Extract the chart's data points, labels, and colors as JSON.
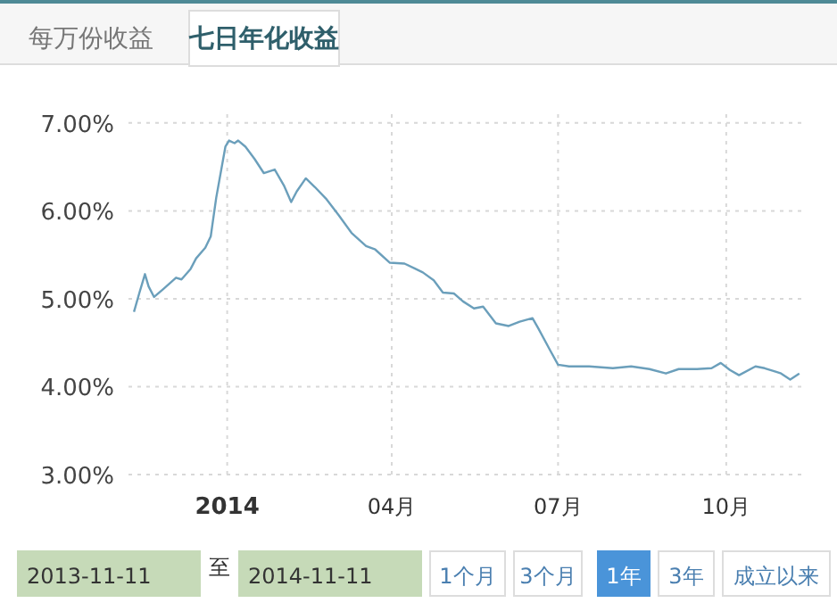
{
  "chart_data": {
    "type": "line",
    "series": [
      {
        "color": "#6b9fbb",
        "x": [
          "2013-11-11",
          "2013-11-14",
          "2013-11-17",
          "2013-11-19",
          "2013-11-22",
          "2013-11-27",
          "2013-12-04",
          "2013-12-07",
          "2013-12-12",
          "2013-12-15",
          "2013-12-20",
          "2013-12-23",
          "2013-12-26",
          "2013-12-31",
          "2014-01-02",
          "2014-01-05",
          "2014-01-07",
          "2014-01-11",
          "2014-01-16",
          "2014-01-21",
          "2014-01-24",
          "2014-01-27",
          "2014-02-01",
          "2014-02-05",
          "2014-02-08",
          "2014-02-13",
          "2014-02-18",
          "2014-02-24",
          "2014-03-03",
          "2014-03-10",
          "2014-03-18",
          "2014-03-23",
          "2014-03-31",
          "2014-04-08",
          "2014-04-14",
          "2014-04-18",
          "2014-04-24",
          "2014-04-29",
          "2014-05-05",
          "2014-05-10",
          "2014-05-16",
          "2014-05-21",
          "2014-05-28",
          "2014-06-04",
          "2014-06-10",
          "2014-06-17",
          "2014-06-20",
          "2014-06-27",
          "2014-07-01",
          "2014-07-07",
          "2014-07-18",
          "2014-07-31",
          "2014-08-10",
          "2014-08-20",
          "2014-08-29",
          "2014-09-05",
          "2014-09-15",
          "2014-09-23",
          "2014-09-28",
          "2014-10-03",
          "2014-10-08",
          "2014-10-17",
          "2014-10-22",
          "2014-10-28",
          "2014-10-31",
          "2014-11-05",
          "2014-11-10"
        ],
        "values": [
          4.85,
          5.07,
          5.28,
          5.14,
          5.02,
          5.11,
          5.24,
          5.22,
          5.34,
          5.46,
          5.58,
          5.71,
          6.15,
          6.73,
          6.8,
          6.77,
          6.8,
          6.73,
          6.59,
          6.43,
          6.45,
          6.47,
          6.29,
          6.1,
          6.22,
          6.37,
          6.27,
          6.14,
          5.95,
          5.75,
          5.6,
          5.56,
          5.41,
          5.4,
          5.34,
          5.3,
          5.21,
          5.07,
          5.06,
          4.97,
          4.89,
          4.91,
          4.72,
          4.69,
          4.74,
          4.78,
          4.67,
          4.4,
          4.25,
          4.23,
          4.23,
          4.21,
          4.23,
          4.2,
          4.15,
          4.2,
          4.2,
          4.21,
          4.27,
          4.19,
          4.13,
          4.23,
          4.21,
          4.17,
          4.15,
          4.08,
          4.15
        ]
      }
    ],
    "xlim": [
      "2013-11-08",
      "2014-11-14"
    ],
    "xticks": [
      {
        "value": "2014-01-01",
        "label": "2014"
      },
      {
        "value": "2014-04-01",
        "label": "04月"
      },
      {
        "value": "2014-07-01",
        "label": "07月"
      },
      {
        "value": "2014-10-01",
        "label": "10月"
      }
    ],
    "ylim": [
      3,
      7.1
    ],
    "yticks": [
      {
        "value": 3,
        "label": "3.00%"
      },
      {
        "value": 4,
        "label": "4.00%"
      },
      {
        "value": 5,
        "label": "5.00%"
      },
      {
        "value": 6,
        "label": "6.00%"
      },
      {
        "value": 7,
        "label": "7.00%"
      }
    ],
    "grid": true,
    "annotations": [
      "每万份收益",
      "七日年化收益",
      "2013-11-11",
      "至",
      "2014-11-11",
      "1个月",
      "3个月",
      "1年",
      "3年",
      "成立以来"
    ]
  }
}
